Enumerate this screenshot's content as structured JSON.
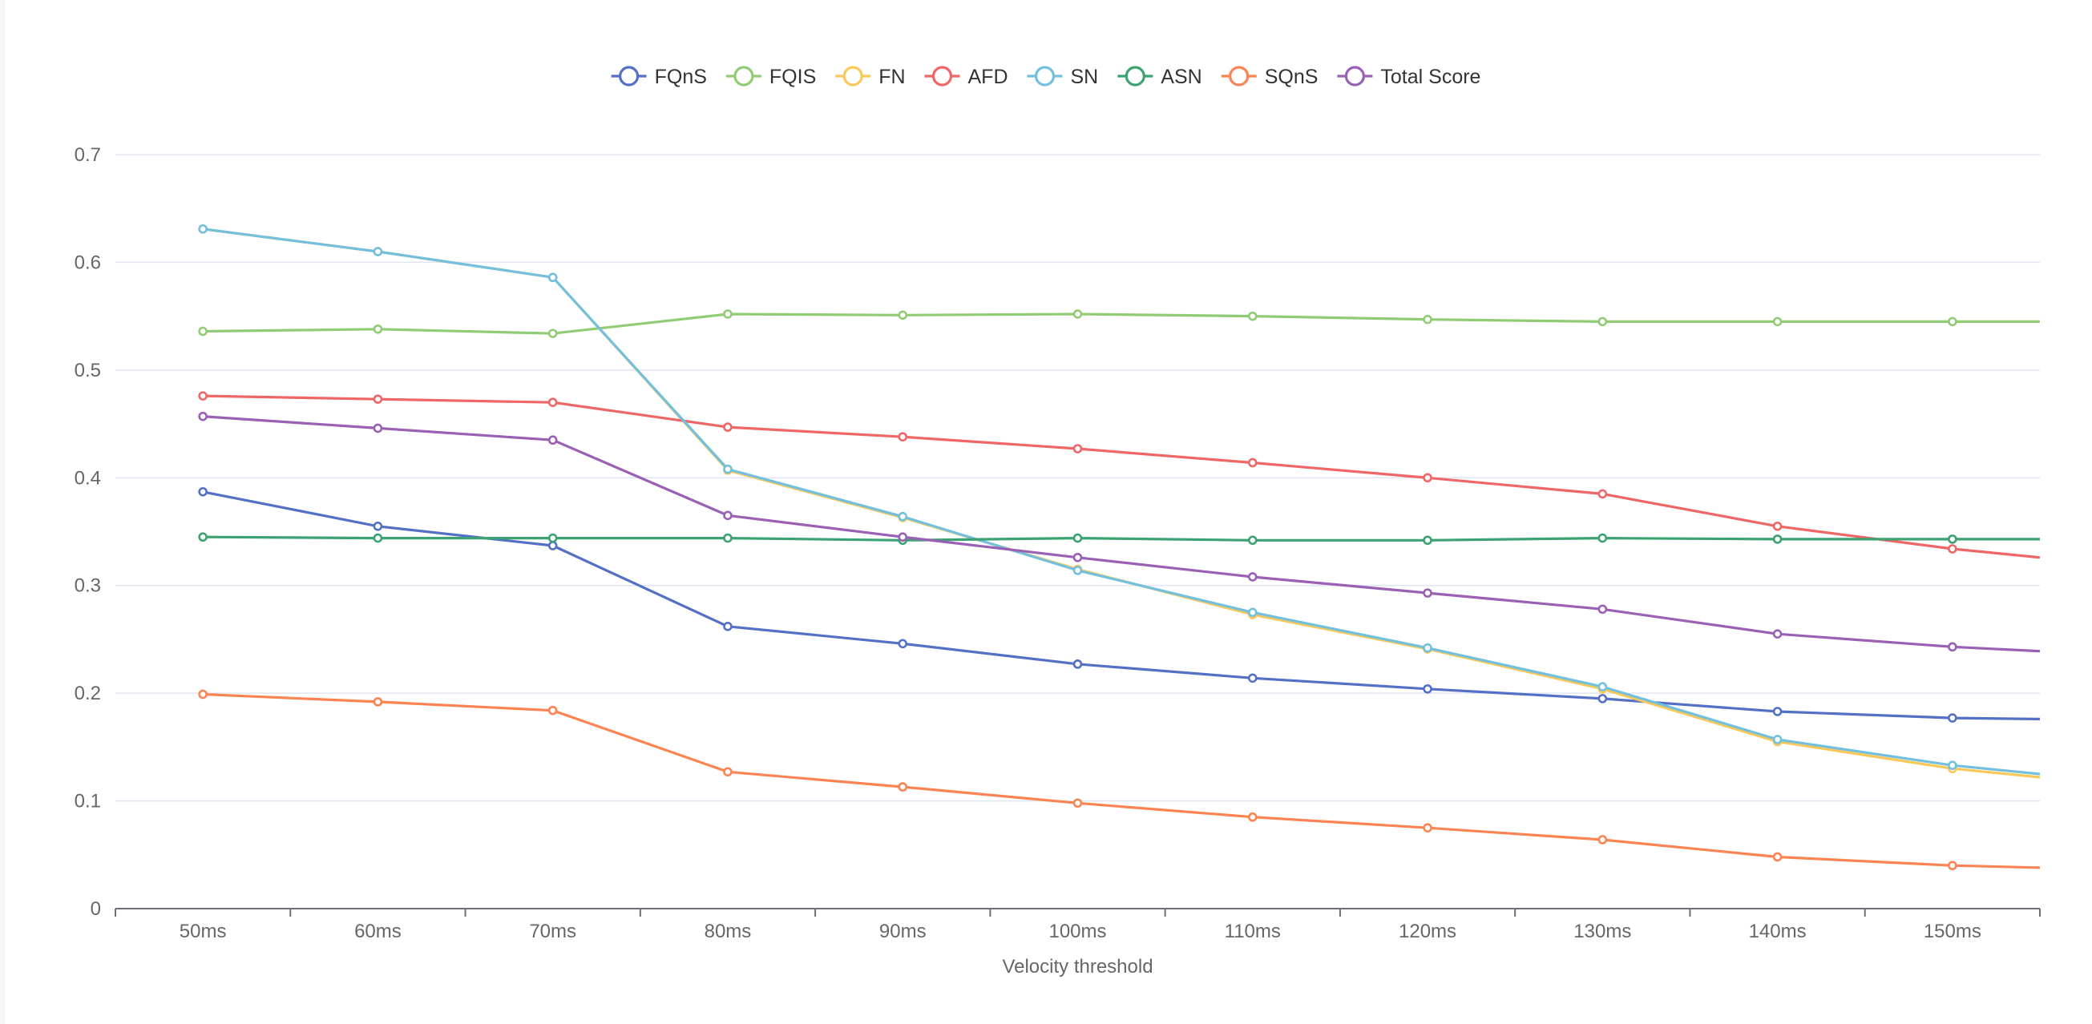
{
  "chart_data": {
    "type": "line",
    "title": "",
    "xlabel": "Velocity threshold",
    "ylabel": "",
    "categories": [
      "50ms",
      "60ms",
      "70ms",
      "80ms",
      "90ms",
      "100ms",
      "110ms",
      "120ms",
      "130ms",
      "140ms",
      "150ms"
    ],
    "x_extends_past_last_category": true,
    "ylim": [
      0,
      0.7
    ],
    "yticks": [
      "0",
      "0.1",
      "0.2",
      "0.3",
      "0.4",
      "0.5",
      "0.6",
      "0.7"
    ],
    "grid": "horizontal",
    "legend_position": "top-center",
    "series": [
      {
        "name": "FQnS",
        "color": "#5470c6",
        "values": [
          0.387,
          0.355,
          0.337,
          0.262,
          0.246,
          0.227,
          0.214,
          0.204,
          0.195,
          0.183,
          0.177
        ],
        "end_value": 0.176
      },
      {
        "name": "FQIS",
        "color": "#91cc75",
        "values": [
          0.536,
          0.538,
          0.534,
          0.552,
          0.551,
          0.552,
          0.55,
          0.547,
          0.545,
          0.545,
          0.545
        ],
        "end_value": 0.545
      },
      {
        "name": "FN",
        "color": "#fac858",
        "values": [
          0.631,
          0.61,
          0.586,
          0.407,
          0.363,
          0.315,
          0.273,
          0.241,
          0.204,
          0.155,
          0.13
        ],
        "end_value": 0.122
      },
      {
        "name": "AFD",
        "color": "#ee6666",
        "values": [
          0.476,
          0.473,
          0.47,
          0.447,
          0.438,
          0.427,
          0.414,
          0.4,
          0.385,
          0.355,
          0.334
        ],
        "end_value": 0.326
      },
      {
        "name": "SN",
        "color": "#73c0de",
        "values": [
          0.631,
          0.61,
          0.586,
          0.408,
          0.364,
          0.314,
          0.275,
          0.242,
          0.206,
          0.157,
          0.133
        ],
        "end_value": 0.125
      },
      {
        "name": "ASN",
        "color": "#3ba272",
        "values": [
          0.345,
          0.344,
          0.344,
          0.344,
          0.342,
          0.344,
          0.342,
          0.342,
          0.344,
          0.343,
          0.343
        ],
        "end_value": 0.343
      },
      {
        "name": "SQnS",
        "color": "#fc8452",
        "values": [
          0.199,
          0.192,
          0.184,
          0.127,
          0.113,
          0.098,
          0.085,
          0.075,
          0.064,
          0.048,
          0.04
        ],
        "end_value": 0.038
      },
      {
        "name": "Total Score",
        "color": "#9a60b4",
        "values": [
          0.457,
          0.446,
          0.435,
          0.365,
          0.345,
          0.326,
          0.308,
          0.293,
          0.278,
          0.255,
          0.243
        ],
        "end_value": 0.239
      }
    ]
  }
}
